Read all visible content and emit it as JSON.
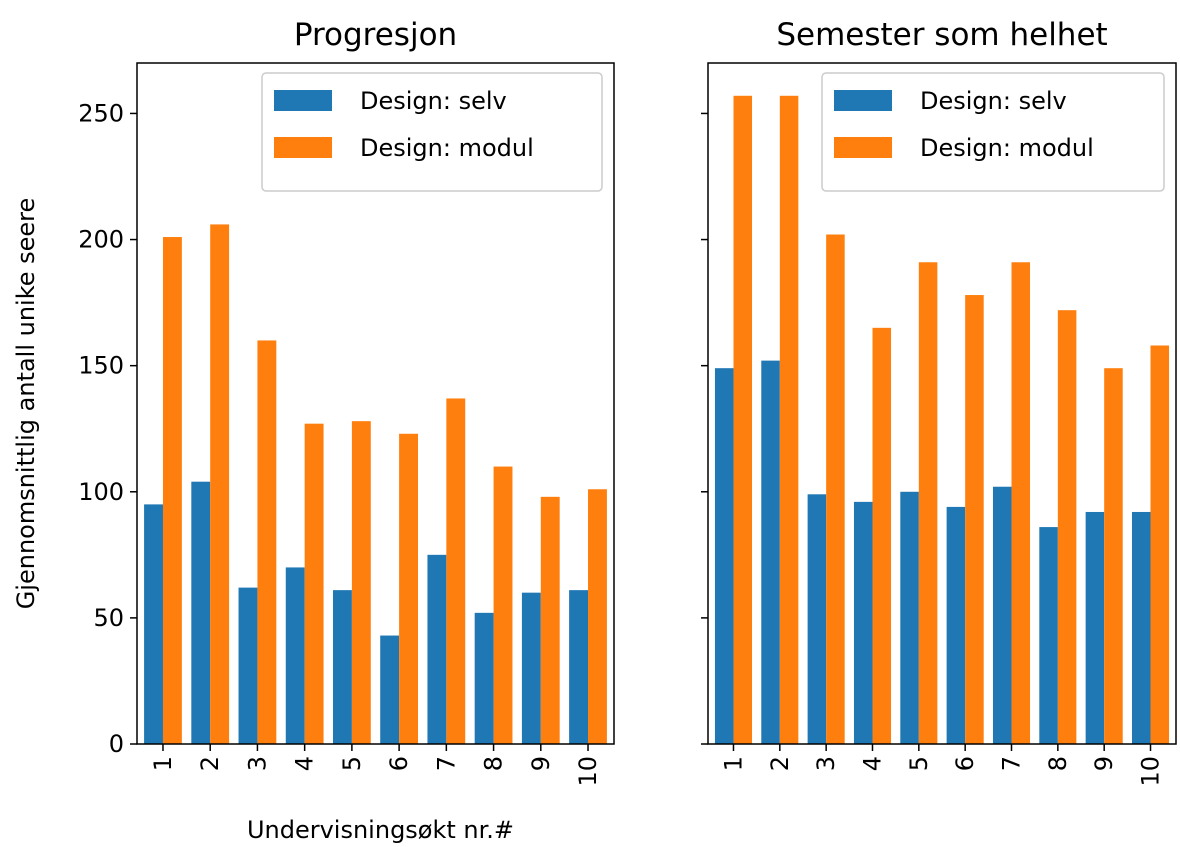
{
  "colors": {
    "selv": "#1f77b4",
    "modul": "#ff7f0e"
  },
  "ylabel": "Gjennomsnittlig antall unike seere",
  "xlabel": "Undervisningsøkt nr.#",
  "chart_data": [
    {
      "type": "bar",
      "title": "Progresjon",
      "categories": [
        "1",
        "2",
        "3",
        "4",
        "5",
        "6",
        "7",
        "8",
        "9",
        "10"
      ],
      "series": [
        {
          "name": "Design: selv",
          "values": [
            95,
            104,
            62,
            70,
            61,
            43,
            75,
            52,
            60,
            61
          ]
        },
        {
          "name": "Design: modul",
          "values": [
            201,
            206,
            160,
            127,
            128,
            123,
            137,
            110,
            98,
            101
          ]
        }
      ],
      "yticks": [
        0,
        50,
        100,
        150,
        200,
        250
      ],
      "ylim": [
        0,
        270
      ],
      "legend": "top-right"
    },
    {
      "type": "bar",
      "title": "Semester som helhet",
      "categories": [
        "1",
        "2",
        "3",
        "4",
        "5",
        "6",
        "7",
        "8",
        "9",
        "10"
      ],
      "series": [
        {
          "name": "Design: selv",
          "values": [
            149,
            152,
            99,
            96,
            100,
            94,
            102,
            86,
            92,
            92
          ]
        },
        {
          "name": "Design: modul",
          "values": [
            257,
            257,
            202,
            165,
            191,
            178,
            191,
            172,
            149,
            158
          ]
        }
      ],
      "ylim": [
        0,
        270
      ],
      "legend": "top-right"
    }
  ]
}
